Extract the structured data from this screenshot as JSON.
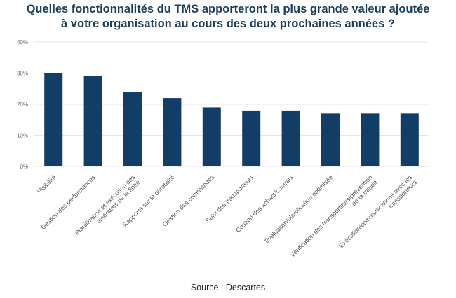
{
  "title_lines": [
    "Quelles fonctionnalités du TMS apporteront la plus grande valeur ajoutée",
    "à votre organisation au cours des deux prochaines années ?"
  ],
  "source": "Source : Descartes",
  "colors": {
    "bar": "#123d66",
    "grid": "#e6e6e6",
    "title": "#1a3e5c"
  },
  "chart_data": {
    "type": "bar",
    "categories": [
      [
        "Visibilité"
      ],
      [
        "Gestion des performances"
      ],
      [
        "Planification et exécution des",
        "itinéraires de la flotte"
      ],
      [
        "Rapports sur la durabilité"
      ],
      [
        "Gestion des commandes"
      ],
      [
        "Suivi des transporteurs"
      ],
      [
        "Gestion des achats/contrats"
      ],
      [
        "Évaluation/planification optimisée"
      ],
      [
        "Vérification des transporteurs/prévention",
        "de la fraude"
      ],
      [
        "Exécution/communications avec les",
        "transporteurs"
      ]
    ],
    "values": [
      30,
      29,
      24,
      22,
      19,
      18,
      18,
      17,
      17,
      17
    ],
    "ylim": [
      0,
      40
    ],
    "yticks": [
      0,
      10,
      20,
      30,
      40
    ],
    "ytick_labels": [
      "0%",
      "10%",
      "20%",
      "30%",
      "40%"
    ],
    "grid": true,
    "xlabel": "",
    "ylabel": ""
  }
}
